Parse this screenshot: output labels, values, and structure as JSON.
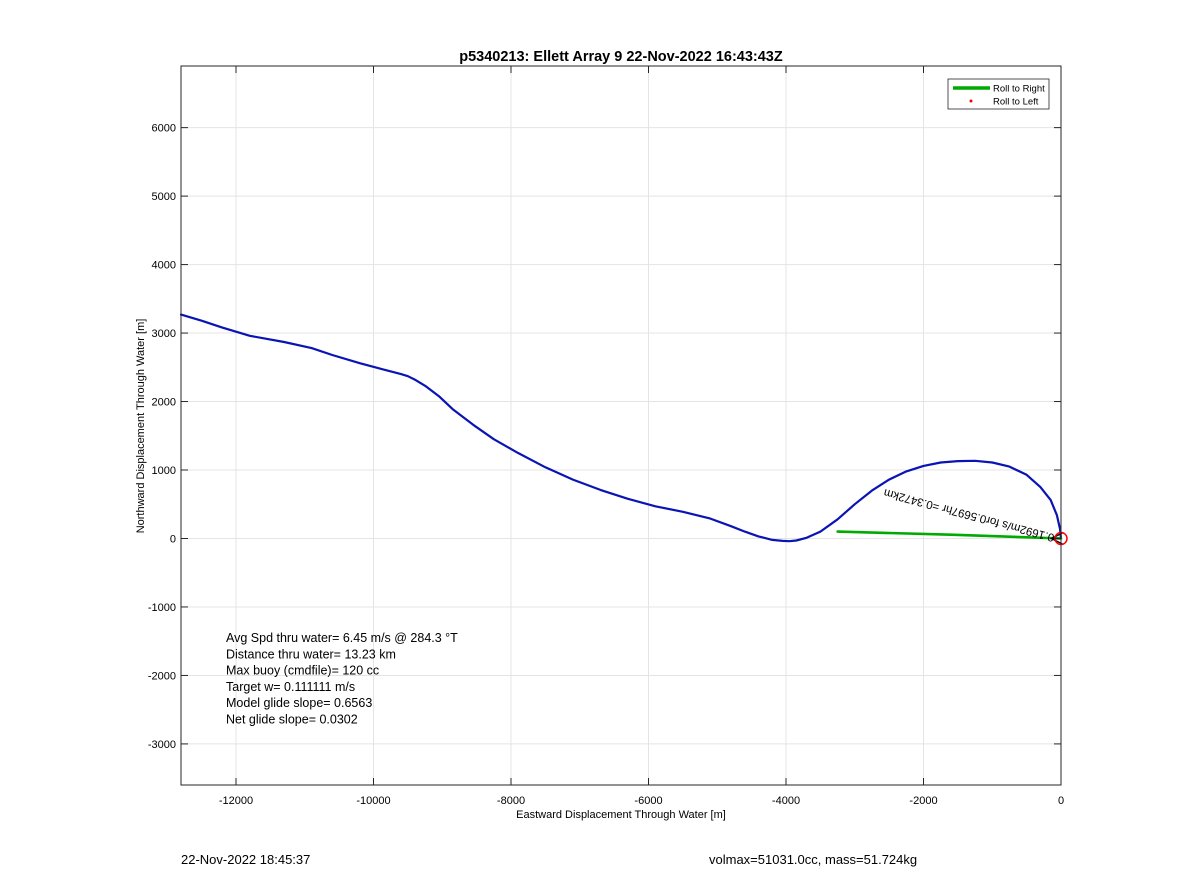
{
  "chart_data": {
    "type": "line",
    "title": "p5340213: Ellett Array 9 22-Nov-2022 16:43:43Z",
    "xlabel": "Eastward Displacement Through Water [m]",
    "ylabel": "Northward Displacement Through Water [m]",
    "xlim": [
      -12800,
      0
    ],
    "ylim": [
      -3600,
      6900
    ],
    "xticks": [
      -12000,
      -10000,
      -8000,
      -6000,
      -4000,
      -2000,
      0
    ],
    "yticks": [
      -3000,
      -2000,
      -1000,
      0,
      1000,
      2000,
      3000,
      4000,
      5000,
      6000
    ],
    "grid": true,
    "legend": {
      "position": "top-right",
      "entries": [
        {
          "label": "Roll to Right",
          "color": "#00aa00",
          "style": "line"
        },
        {
          "label": "Roll to Left",
          "color": "#ff0000",
          "style": "dot"
        }
      ]
    },
    "series": [
      {
        "color": "#0a14b4",
        "x": [
          -12800,
          -12500,
          -12200,
          -11800,
          -11300,
          -10900,
          -10600,
          -10200,
          -9900,
          -9600,
          -9500,
          -9400,
          -9250,
          -9050,
          -8850,
          -8550,
          -8250,
          -7900,
          -7500,
          -7100,
          -6700,
          -6300,
          -5900,
          -5500,
          -5100,
          -4800,
          -4600,
          -4400,
          -4200,
          -4050,
          -3950,
          -3850,
          -3700,
          -3500,
          -3250,
          -3000,
          -2750,
          -2500,
          -2250,
          -2000,
          -1750,
          -1500,
          -1250,
          -1000,
          -750,
          -500,
          -300,
          -150,
          -60,
          -15,
          0
        ],
        "y": [
          3270,
          3180,
          3080,
          2960,
          2870,
          2780,
          2680,
          2560,
          2480,
          2400,
          2370,
          2320,
          2230,
          2080,
          1890,
          1660,
          1450,
          1250,
          1040,
          860,
          710,
          580,
          470,
          390,
          290,
          180,
          100,
          30,
          -20,
          -35,
          -40,
          -30,
          10,
          100,
          280,
          500,
          700,
          860,
          980,
          1060,
          1110,
          1130,
          1135,
          1110,
          1050,
          930,
          750,
          560,
          340,
          140,
          0
        ]
      },
      {
        "name": "Roll to Right",
        "color": "#00aa00",
        "x": [
          -3250,
          -1600,
          0
        ],
        "y": [
          100,
          55,
          0
        ]
      }
    ],
    "current_vector": {
      "label": "0.1692m/s for0.5697hr =0.3472km",
      "from": [
        0,
        0
      ],
      "to": [
        -140,
        0
      ],
      "end_marker": "circle",
      "end_marker_color": "#ff0000"
    },
    "annotations": [
      "Avg Spd thru water=  6.45 m/s @ 284.3 °T",
      "Distance thru water= 13.23 km",
      "Max buoy (cmdfile)= 120 cc",
      "Target w= 0.111111 m/s",
      "Model glide slope= 0.6563",
      "Net glide slope= 0.0302"
    ]
  },
  "footer": {
    "timestamp": "22-Nov-2022 18:45:37",
    "info": "volmax=51031.0cc, mass=51.724kg"
  }
}
